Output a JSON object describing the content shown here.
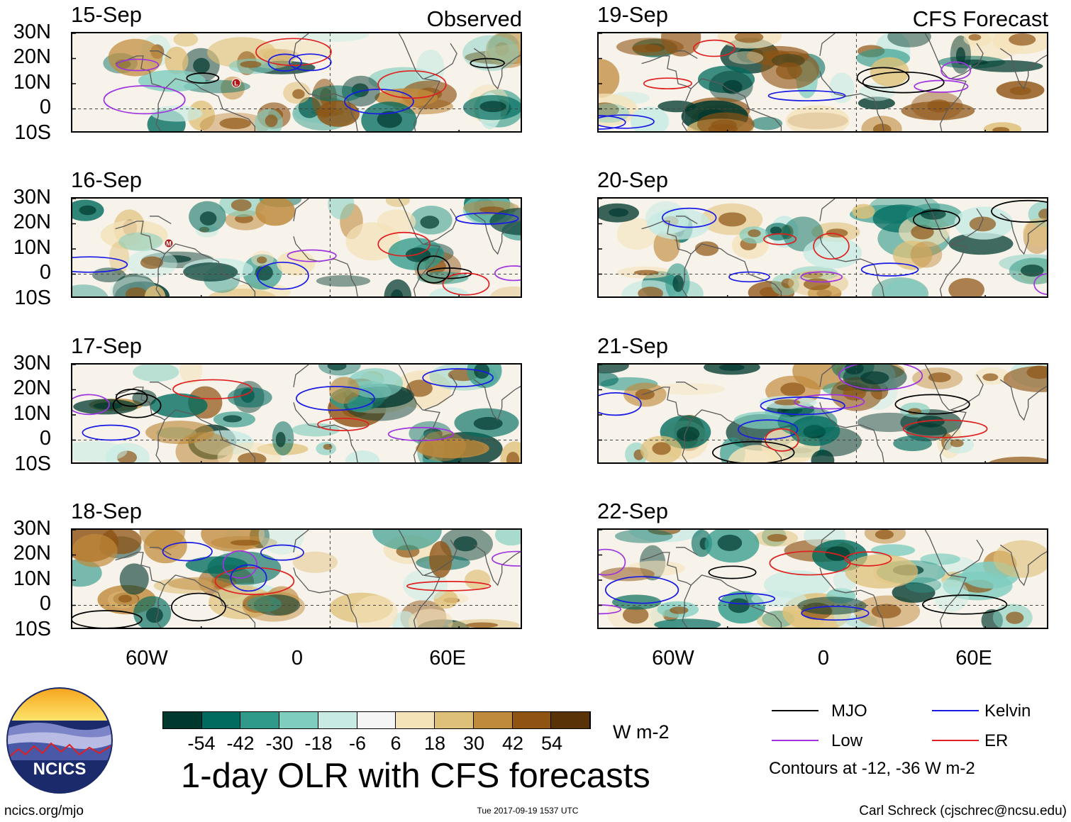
{
  "colors": {
    "mjo": "#000000",
    "kelvin": "#1a1ae6",
    "low": "#a033e0",
    "er": "#e02020",
    "colorbar": [
      "#00382e",
      "#006b5e",
      "#2f9a8a",
      "#7fcdbf",
      "#c7ebe4",
      "#f5f5f5",
      "#f4e2b8",
      "#dfc078",
      "#c08a3c",
      "#8f5414",
      "#5a3208"
    ]
  },
  "panels": {
    "p1": {
      "date": "15-Sep",
      "title": "Observed"
    },
    "p2": {
      "date": "16-Sep"
    },
    "p3": {
      "date": "17-Sep"
    },
    "p4": {
      "date": "18-Sep"
    },
    "p5": {
      "date": "19-Sep",
      "title": "CFS Forecast"
    },
    "p6": {
      "date": "20-Sep"
    },
    "p7": {
      "date": "21-Sep"
    },
    "p8": {
      "date": "22-Sep"
    }
  },
  "lat_labels": [
    "30N",
    "20N",
    "10N",
    "0",
    "10S"
  ],
  "lon_labels": [
    "60W",
    "0",
    "60E"
  ],
  "markers": {
    "low": "L",
    "mjo": "M"
  },
  "colorbar": {
    "labels": [
      "-54",
      "-42",
      "-30",
      "-18",
      "-6",
      "6",
      "18",
      "30",
      "42",
      "54"
    ],
    "unit": "W m-2"
  },
  "legend": {
    "mjo": "MJO",
    "kelvin": "Kelvin",
    "low": "Low",
    "er": "ER",
    "note": "Contours at -12, -36 W m-2"
  },
  "footer": {
    "logo_text": "NCICS",
    "main_title": "1-day OLR with CFS forecasts",
    "url": "ncics.org/mjo",
    "timestamp": "Tue 2017-09-19 1537 UTC",
    "credit": "Carl Schreck (cjschrec@ncsu.edu)"
  }
}
